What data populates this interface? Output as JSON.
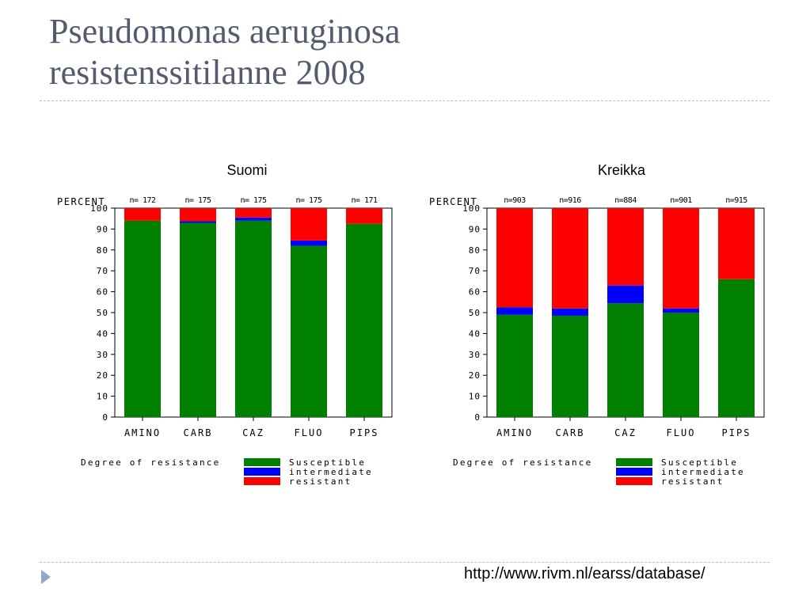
{
  "slide": {
    "title_line1": "Pseudomonas aeruginosa",
    "title_line2": "resistenssitilanne 2008",
    "source_url": "http://www.rivm.nl/earss/database/"
  },
  "colors": {
    "susceptible": "#008000",
    "intermediate": "#0000ff",
    "resistant": "#ff0000",
    "title": "#555b6e"
  },
  "chart_data": [
    {
      "type": "bar",
      "stacked": true,
      "title": "Suomi",
      "ylabel": "PERCENT",
      "ylim": [
        0,
        100
      ],
      "yticks": [
        0,
        10,
        20,
        30,
        40,
        50,
        60,
        70,
        80,
        90,
        100
      ],
      "categories": [
        "AMINO",
        "CARB",
        "CAZ",
        "FLUO",
        "PIPS"
      ],
      "n_labels": [
        "n= 172",
        "n= 175",
        "n= 175",
        "n= 175",
        "n= 171"
      ],
      "series": [
        {
          "name": "Susceptible",
          "values": [
            94,
            93,
            94,
            82,
            92.5
          ]
        },
        {
          "name": "intermediate",
          "values": [
            0,
            0.8,
            1.5,
            2.5,
            0
          ]
        },
        {
          "name": "resistant",
          "values": [
            6,
            6.2,
            4.5,
            15.5,
            7.5
          ]
        }
      ],
      "legend_title": "Degree of resistance",
      "legend_position": "bottom"
    },
    {
      "type": "bar",
      "stacked": true,
      "title": "Kreikka",
      "ylabel": "PERCENT",
      "ylim": [
        0,
        100
      ],
      "yticks": [
        0,
        10,
        20,
        30,
        40,
        50,
        60,
        70,
        80,
        90,
        100
      ],
      "categories": [
        "AMINO",
        "CARB",
        "CAZ",
        "FLUO",
        "PIPS"
      ],
      "n_labels": [
        "n=903",
        "n=916",
        "n=884",
        "n=901",
        "n=915"
      ],
      "series": [
        {
          "name": "Susceptible",
          "values": [
            49,
            48.5,
            54.5,
            50,
            66
          ]
        },
        {
          "name": "intermediate",
          "values": [
            3.5,
            3.5,
            8.5,
            2,
            0
          ]
        },
        {
          "name": "resistant",
          "values": [
            47.5,
            48,
            37,
            48,
            34
          ]
        }
      ],
      "legend_title": "Degree of resistance",
      "legend_position": "bottom"
    }
  ]
}
